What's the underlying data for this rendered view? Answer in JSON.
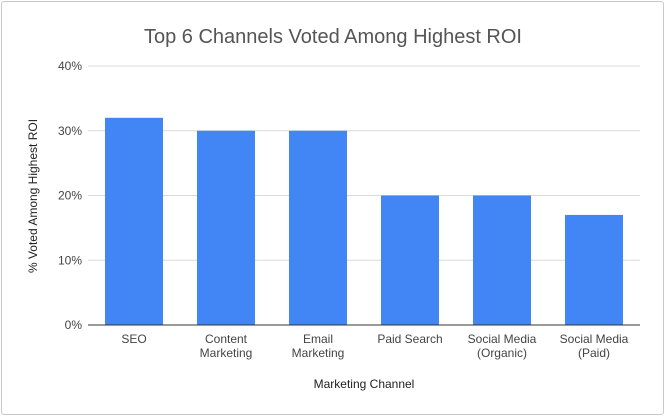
{
  "chart_data": {
    "type": "bar",
    "title": "Top 6 Channels Voted Among Highest ROI",
    "xlabel": "Marketing Channel",
    "ylabel": "% Voted Among Highest ROI",
    "categories": [
      [
        "SEO"
      ],
      [
        "Content",
        "Marketing"
      ],
      [
        "Email",
        "Marketing"
      ],
      [
        "Paid Search"
      ],
      [
        "Social Media",
        "(Organic)"
      ],
      [
        "Social Media",
        "(Paid)"
      ]
    ],
    "values": [
      32,
      30,
      30,
      20,
      20,
      17
    ],
    "ylim": [
      0,
      40
    ],
    "yticks": [
      "0%",
      "10%",
      "20%",
      "30%",
      "40%"
    ],
    "grid": true,
    "bar_color": "#4285f4"
  }
}
